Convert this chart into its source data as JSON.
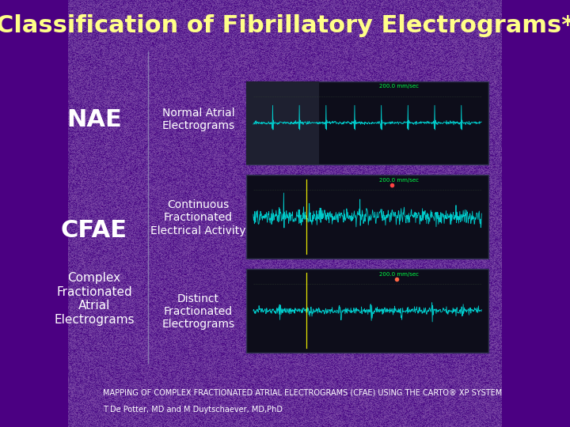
{
  "title": "Classification of Fibrillatory Electrograms*",
  "title_color": "#FFFF88",
  "title_fontsize": 22,
  "background_color": "#4B0082",
  "nae_label": "NAE",
  "cfae_label": "CFAE",
  "cfae_sublabel": "Complex\nFractionated\nAtrial\nElectrograms",
  "row_labels": [
    "Normal Atrial\nElectrograms",
    "Continuous\nFractionated\nElectrical Activity",
    "Distinct\nFractionated\nElectrograms"
  ],
  "label_color": "#FFFFFF",
  "label_fontsize": 10,
  "nae_fontsize": 22,
  "cfae_fontsize": 22,
  "cfae_sub_fontsize": 11,
  "footer_line1": "MAPPING OF COMPLEX FRACTIONATED ATRIAL ELECTROGRAMS (CFAE) USING THE CARTO® XP SYSTEM",
  "footer_line2": "T De Potter, MD and M Duytschaever, MD,PhD",
  "footer_color": "#FFFFFF",
  "footer_fontsize": 7
}
